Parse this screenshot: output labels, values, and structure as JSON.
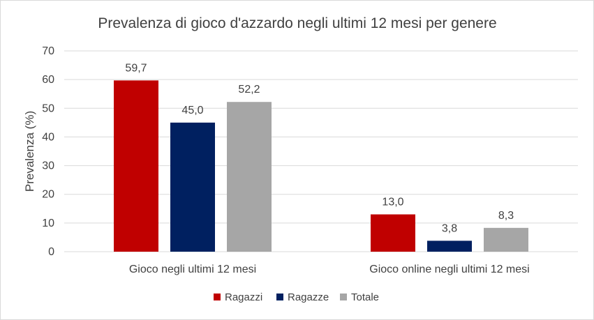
{
  "chart_data": {
    "type": "bar",
    "title": "Prevalenza di gioco d'azzardo negli ultimi 12 mesi per genere",
    "ylabel": "Prevalenza (%)",
    "xlabel": "",
    "ylim": [
      0,
      70
    ],
    "yticks": [
      "0",
      "10",
      "20",
      "30",
      "40",
      "50",
      "60",
      "70"
    ],
    "ytick_values": [
      0,
      10,
      20,
      30,
      40,
      50,
      60,
      70
    ],
    "grid": true,
    "legend_position": "bottom",
    "categories": [
      "Gioco negli ultimi 12 mesi",
      "Gioco online negli ultimi 12 mesi"
    ],
    "series": [
      {
        "name": "Ragazzi",
        "color": "#c00000",
        "values": [
          59.7,
          13.0
        ],
        "labels": [
          "59,7",
          "13,0"
        ]
      },
      {
        "name": "Ragazze",
        "color": "#002060",
        "values": [
          45.0,
          3.8
        ],
        "labels": [
          "45,0",
          "3,8"
        ]
      },
      {
        "name": "Totale",
        "color": "#a6a6a6",
        "values": [
          52.2,
          8.3
        ],
        "labels": [
          "52,2",
          "8,3"
        ]
      }
    ]
  }
}
